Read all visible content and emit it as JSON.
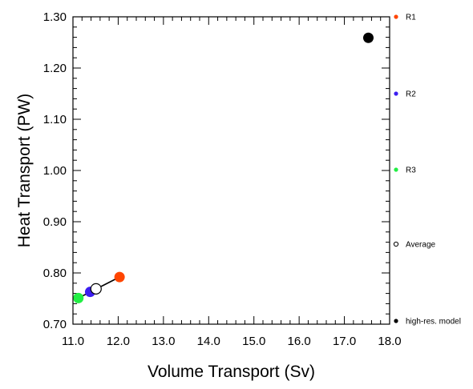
{
  "chart_data": {
    "type": "scatter",
    "xlabel": "Volume Transport (Sv)",
    "ylabel": "Heat Transport (PW)",
    "xlim": [
      11.0,
      18.0
    ],
    "ylim": [
      0.7,
      1.3
    ],
    "x_ticks": [
      11.0,
      12.0,
      13.0,
      14.0,
      15.0,
      16.0,
      17.0,
      18.0
    ],
    "x_tick_labels": [
      "11.0",
      "12.0",
      "13.0",
      "14.0",
      "15.0",
      "16.0",
      "17.0",
      "18.0"
    ],
    "y_ticks": [
      0.7,
      0.8,
      0.9,
      1.0,
      1.1,
      1.2,
      1.3
    ],
    "y_tick_labels": [
      "0.70",
      "0.80",
      "0.90",
      "1.00",
      "1.10",
      "1.20",
      "1.30"
    ],
    "grid": false,
    "legend_placement": "right",
    "series": [
      {
        "name": "R1",
        "color": "#ff4500",
        "marker": "filled-circle",
        "x": 12.03,
        "y": 0.792
      },
      {
        "name": "R2",
        "color": "#3c1ef0",
        "marker": "filled-circle",
        "x": 11.38,
        "y": 0.763
      },
      {
        "name": "R3",
        "color": "#22ee44",
        "marker": "filled-circle",
        "x": 11.12,
        "y": 0.751
      },
      {
        "name": "Average",
        "color": "#000000",
        "marker": "open-circle",
        "x": 11.51,
        "y": 0.769
      },
      {
        "name": "high-res. model",
        "color": "#000000",
        "marker": "filled-circle",
        "x": 17.53,
        "y": 1.259
      }
    ],
    "connector": {
      "from": "R1",
      "to": "R3",
      "color": "#000000"
    }
  }
}
